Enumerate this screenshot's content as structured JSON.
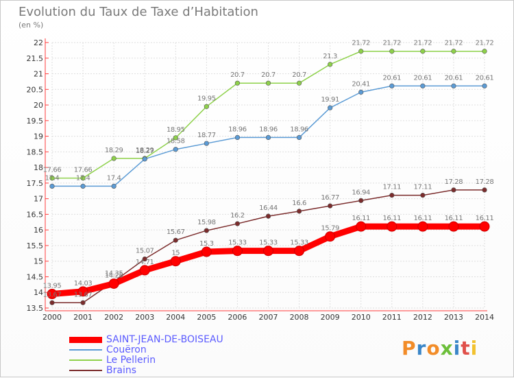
{
  "chart_data": {
    "type": "line",
    "title": "Evolution du Taux de Taxe d’Habitation",
    "ylabel": "(en %)",
    "categories": [
      "2000",
      "2001",
      "2002",
      "2003",
      "2004",
      "2005",
      "2006",
      "2007",
      "2008",
      "2009",
      "2010",
      "2011",
      "2012",
      "2013",
      "2014"
    ],
    "ylim": [
      13.5,
      22
    ],
    "yticks": [
      "13.5",
      "14",
      "14.5",
      "15",
      "15.5",
      "16",
      "16.5",
      "17",
      "17.5",
      "18",
      "18.5",
      "19",
      "19.5",
      "20",
      "20.5",
      "21",
      "21.5",
      "22"
    ],
    "grid": true,
    "legend_position": "bottom-left",
    "series": [
      {
        "name": "SAINT-JEAN-DE-BOISEAU",
        "color": "#ff0000",
        "values": [
          13.95,
          14.03,
          14.28,
          14.71,
          15.0,
          15.3,
          15.33,
          15.33,
          15.33,
          15.79,
          16.11,
          16.11,
          16.11,
          16.11,
          16.11
        ],
        "labels": [
          "13.95",
          "14.03",
          "14.28",
          "14.71",
          "15",
          "15.3",
          "15.33",
          "15.33",
          "15.33",
          "15.79",
          "16.11",
          "16.11",
          "16.11",
          "16.11",
          "16.11"
        ]
      },
      {
        "name": "Couëron",
        "color": "#5b9bd5",
        "values": [
          17.4,
          17.4,
          17.4,
          18.27,
          18.58,
          18.77,
          18.96,
          18.96,
          18.96,
          19.91,
          20.41,
          20.61,
          20.61,
          20.61,
          20.61
        ],
        "labels": [
          "17.4",
          "17.4",
          "17.4",
          "18.27",
          "18.58",
          "18.77",
          "18.96",
          "18.96",
          "18.96",
          "19.91",
          "20.41",
          "20.61",
          "20.61",
          "20.61",
          "20.61"
        ]
      },
      {
        "name": "Le Pellerin",
        "color": "#8ed14a",
        "values": [
          17.66,
          17.66,
          18.29,
          18.29,
          18.95,
          19.95,
          20.7,
          20.7,
          20.7,
          21.3,
          21.72,
          21.72,
          21.72,
          21.72,
          21.72
        ],
        "labels": [
          "17.66",
          "17.66",
          "18.29",
          "18.29",
          "18.95",
          "19.95",
          "20.7",
          "20.7",
          "20.7",
          "21.3",
          "21.72",
          "21.72",
          "21.72",
          "21.72",
          "21.72"
        ]
      },
      {
        "name": "Brains",
        "color": "#7b2c2c",
        "values": [
          13.67,
          13.67,
          14.35,
          15.07,
          15.67,
          15.98,
          16.2,
          16.44,
          16.6,
          16.77,
          16.94,
          17.11,
          17.11,
          17.28,
          17.28
        ],
        "labels": [
          "13.67",
          "13.67",
          "14.35",
          "15.07",
          "15.67",
          "15.98",
          "16.2",
          "16.44",
          "16.6",
          "16.77",
          "16.94",
          "17.11",
          "17.11",
          "17.28",
          "17.28"
        ]
      }
    ]
  },
  "logo": {
    "text": "Proxiti",
    "colors": [
      "#f28c28",
      "#3a86c8",
      "#f28c28",
      "#6cbf3a",
      "#3a86c8",
      "#e0504a",
      "#f2c12e"
    ]
  }
}
